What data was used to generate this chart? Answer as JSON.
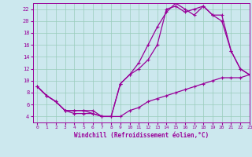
{
  "xlabel": "Windchill (Refroidissement éolien,°C)",
  "x_ticks": [
    0,
    1,
    2,
    3,
    4,
    5,
    6,
    7,
    8,
    9,
    10,
    11,
    12,
    13,
    14,
    15,
    16,
    17,
    18,
    19,
    20,
    21,
    22,
    23
  ],
  "ylim": [
    3,
    23
  ],
  "xlim": [
    -0.5,
    23
  ],
  "y_ticks": [
    4,
    6,
    8,
    10,
    12,
    14,
    16,
    18,
    20,
    22
  ],
  "bg_color": "#cce8ee",
  "line_color": "#990099",
  "grid_color": "#99ccbb",
  "line1_x": [
    0,
    1,
    2,
    3,
    4,
    5,
    6,
    7,
    8,
    9,
    10,
    11,
    12,
    13,
    14,
    15,
    16,
    17,
    18,
    19,
    20,
    21,
    22,
    23
  ],
  "line1_y": [
    9,
    7.5,
    6.5,
    5,
    4.5,
    4.5,
    4.5,
    4,
    4,
    4,
    5,
    5.5,
    6.5,
    7,
    7.5,
    8,
    8.5,
    9,
    9.5,
    10,
    10.5,
    10.5,
    10.5,
    11
  ],
  "line2_x": [
    0,
    1,
    2,
    3,
    4,
    5,
    6,
    7,
    8,
    9,
    10,
    11,
    12,
    13,
    14,
    15,
    16,
    17,
    18,
    19,
    20,
    21,
    22,
    23
  ],
  "line2_y": [
    9,
    7.5,
    6.5,
    5,
    5,
    5,
    5,
    4,
    4,
    9.5,
    11,
    12,
    13.5,
    16,
    22,
    22.5,
    21.5,
    22,
    22.5,
    21,
    21,
    15,
    12,
    11
  ],
  "line3_x": [
    0,
    1,
    2,
    3,
    4,
    5,
    6,
    7,
    8,
    9,
    10,
    11,
    12,
    13,
    14,
    15,
    16,
    17,
    18,
    19,
    20,
    21,
    22,
    23
  ],
  "line3_y": [
    9,
    7.5,
    6.5,
    5,
    5,
    5,
    4.5,
    4,
    4,
    9.5,
    11,
    13,
    16,
    19,
    21.5,
    23,
    22,
    21,
    22.5,
    21,
    20,
    15,
    12,
    11
  ]
}
